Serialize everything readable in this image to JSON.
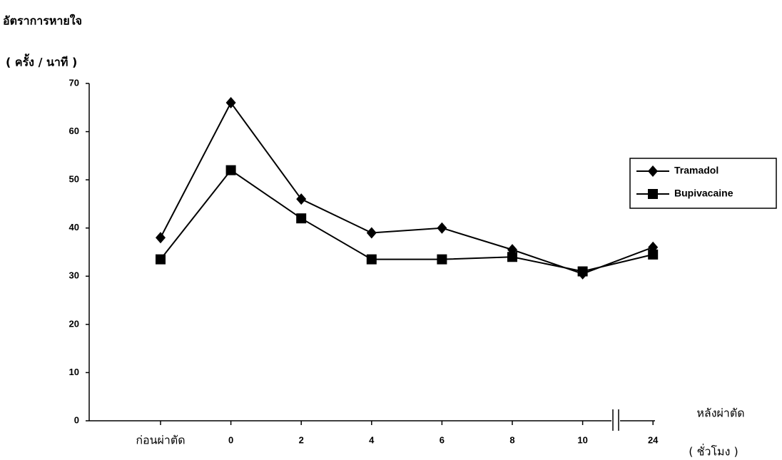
{
  "chart_data": {
    "type": "line",
    "y_label": "อัตราการหายใจ",
    "y_unit": "( ครั้ง / นาที )",
    "x_label": "หลังผ่าตัด",
    "x_unit": "( ชั่วโมง )",
    "categories": [
      "ก่อนผ่าตัด",
      "0",
      "2",
      "4",
      "6",
      "8",
      "10",
      "24"
    ],
    "series": [
      {
        "name": "Tramadol",
        "color": "#000000",
        "marker": "diamond",
        "values": [
          38,
          66,
          46,
          39,
          40,
          35.5,
          30.5,
          36
        ]
      },
      {
        "name": "Bupivacaine",
        "color": "#000000",
        "marker": "square",
        "values": [
          33.5,
          52,
          42,
          33.5,
          33.5,
          34,
          31,
          34.5
        ]
      }
    ],
    "ylim": [
      0,
      70
    ],
    "yticks": [
      0,
      10,
      20,
      30,
      40,
      50,
      60,
      70
    ],
    "legend": "right"
  }
}
